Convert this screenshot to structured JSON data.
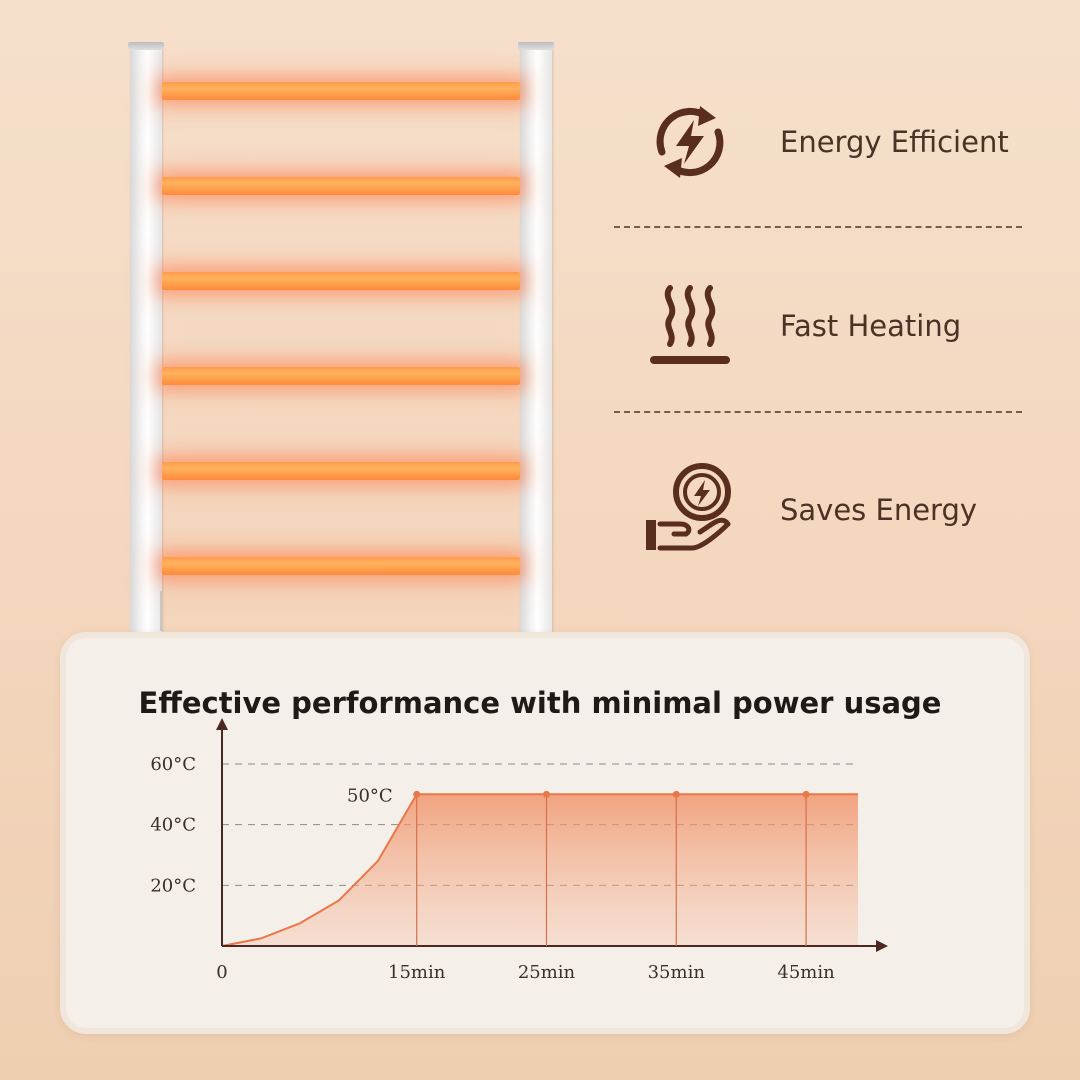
{
  "features": [
    {
      "label": "Energy Efficient",
      "icon": "energy-cycle-icon"
    },
    {
      "label": "Fast Heating",
      "icon": "heat-waves-icon"
    },
    {
      "label": "Saves Energy",
      "icon": "hand-coin-icon"
    }
  ],
  "colors": {
    "accent": "#e8784a",
    "icon": "#5a2e1e",
    "heat_bar": "#ff9b4d"
  },
  "chart_data": {
    "type": "area",
    "title": "Effective performance with minimal power usage",
    "xlabel": "",
    "ylabel": "",
    "x_ticks": [
      {
        "label": "0",
        "value": 0
      },
      {
        "label": "15min",
        "value": 15
      },
      {
        "label": "25min",
        "value": 25
      },
      {
        "label": "35min",
        "value": 35
      },
      {
        "label": "45min",
        "value": 45
      }
    ],
    "y_ticks": [
      {
        "label": "20°C",
        "value": 20
      },
      {
        "label": "40°C",
        "value": 40
      },
      {
        "label": "60°C",
        "value": 60
      }
    ],
    "xlim": [
      0,
      49
    ],
    "ylim": [
      0,
      60
    ],
    "series": [
      {
        "x": [
          0,
          3,
          6,
          9,
          12,
          15,
          25,
          35,
          45,
          49
        ],
        "y": [
          0,
          2.5,
          7.5,
          15,
          28,
          50,
          50,
          50,
          50,
          50
        ]
      }
    ],
    "markers": [
      {
        "x": 15,
        "y": 50
      },
      {
        "x": 25,
        "y": 50
      },
      {
        "x": 35,
        "y": 50
      },
      {
        "x": 45,
        "y": 50
      }
    ],
    "annotations": [
      {
        "text": "50°C",
        "x": 15,
        "y": 50
      }
    ],
    "grid": "horizontal-dashed"
  }
}
